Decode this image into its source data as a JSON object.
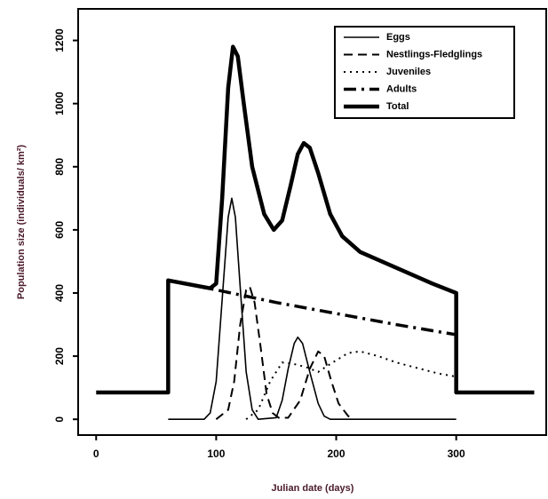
{
  "chart_data": {
    "type": "line",
    "xlabel": "Julian date (days)",
    "ylabel": "Population size (individuals/ km²)",
    "xlim": [
      -15,
      375
    ],
    "ylim": [
      -50,
      1300
    ],
    "xticks": [
      0,
      100,
      200,
      300
    ],
    "yticks": [
      0,
      200,
      400,
      600,
      800,
      1000,
      1200
    ],
    "legend": "upper right",
    "series": [
      {
        "name": "Eggs",
        "color": "#000000",
        "linestyle": "solid",
        "linewidth": 1.6,
        "x": [
          60,
          90,
          95,
          100,
          105,
          110,
          113,
          116,
          120,
          125,
          130,
          135,
          150,
          155,
          160,
          165,
          168,
          172,
          178,
          185,
          190,
          195,
          300
        ],
        "values": [
          0,
          0,
          20,
          120,
          380,
          640,
          700,
          640,
          420,
          150,
          30,
          0,
          5,
          60,
          160,
          240,
          260,
          240,
          150,
          50,
          10,
          0,
          0
        ]
      },
      {
        "name": "Nestlings-Fledglings",
        "color": "#000000",
        "linestyle": "dashed",
        "linewidth": 2,
        "x": [
          100,
          110,
          115,
          120,
          125,
          128,
          132,
          137,
          142,
          147,
          152,
          160,
          170,
          178,
          185,
          190,
          196,
          202,
          210,
          215
        ],
        "values": [
          0,
          30,
          120,
          300,
          410,
          420,
          370,
          230,
          80,
          20,
          5,
          5,
          60,
          160,
          215,
          200,
          120,
          50,
          10,
          0
        ]
      },
      {
        "name": "Juveniles",
        "color": "#000000",
        "linestyle": "dotted",
        "linewidth": 2,
        "x": [
          125,
          135,
          145,
          155,
          165,
          175,
          185,
          195,
          210,
          220,
          235,
          250,
          270,
          285,
          300
        ],
        "values": [
          0,
          30,
          120,
          180,
          175,
          165,
          150,
          175,
          210,
          215,
          200,
          180,
          160,
          145,
          135
        ]
      },
      {
        "name": "Adults",
        "color": "#000000",
        "linestyle": "dashdot",
        "linewidth": 3.5,
        "x": [
          60,
          100,
          150,
          200,
          250,
          300
        ],
        "values": [
          440,
          410,
          370,
          335,
          300,
          268
        ]
      },
      {
        "name": "Total",
        "color": "#000000",
        "linestyle": "solid",
        "linewidth": 4.5,
        "x": [
          0,
          60,
          60,
          95,
          100,
          105,
          110,
          114,
          118,
          123,
          130,
          140,
          148,
          155,
          162,
          168,
          173,
          178,
          185,
          195,
          205,
          220,
          250,
          280,
          300,
          300,
          365
        ],
        "values": [
          85,
          85,
          440,
          415,
          430,
          700,
          1050,
          1180,
          1150,
          1000,
          800,
          650,
          600,
          630,
          740,
          840,
          875,
          860,
          780,
          650,
          580,
          530,
          480,
          430,
          400,
          85,
          85
        ]
      }
    ]
  }
}
